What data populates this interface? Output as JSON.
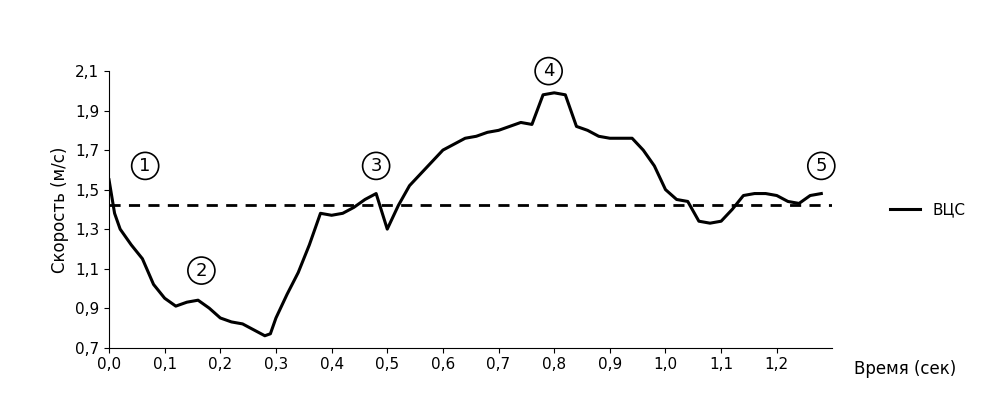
{
  "chart_data": {
    "type": "line",
    "x_label": "Время (сек)",
    "y_label": "Скорость (м/с)",
    "x": [
      0.0,
      0.01,
      0.02,
      0.04,
      0.06,
      0.08,
      0.1,
      0.12,
      0.14,
      0.16,
      0.18,
      0.2,
      0.22,
      0.24,
      0.26,
      0.28,
      0.29,
      0.3,
      0.32,
      0.34,
      0.36,
      0.38,
      0.4,
      0.42,
      0.44,
      0.46,
      0.48,
      0.5,
      0.52,
      0.54,
      0.56,
      0.58,
      0.6,
      0.62,
      0.64,
      0.66,
      0.68,
      0.7,
      0.72,
      0.74,
      0.76,
      0.78,
      0.8,
      0.82,
      0.84,
      0.86,
      0.88,
      0.9,
      0.92,
      0.94,
      0.96,
      0.98,
      1.0,
      1.02,
      1.04,
      1.06,
      1.08,
      1.1,
      1.12,
      1.14,
      1.16,
      1.18,
      1.2,
      1.22,
      1.24,
      1.26,
      1.28
    ],
    "series": [
      {
        "name": "ВЦС",
        "color": "#000000",
        "line_style": "solid",
        "values": [
          1.55,
          1.38,
          1.3,
          1.22,
          1.15,
          1.02,
          0.95,
          0.91,
          0.93,
          0.94,
          0.9,
          0.85,
          0.83,
          0.82,
          0.79,
          0.76,
          0.77,
          0.85,
          0.97,
          1.08,
          1.22,
          1.38,
          1.37,
          1.38,
          1.41,
          1.45,
          1.48,
          1.3,
          1.42,
          1.52,
          1.58,
          1.64,
          1.7,
          1.73,
          1.76,
          1.77,
          1.79,
          1.8,
          1.82,
          1.84,
          1.83,
          1.98,
          1.99,
          1.98,
          1.82,
          1.8,
          1.77,
          1.76,
          1.76,
          1.76,
          1.7,
          1.62,
          1.5,
          1.45,
          1.44,
          1.34,
          1.33,
          1.34,
          1.4,
          1.47,
          1.48,
          1.48,
          1.47,
          1.44,
          1.43,
          1.47,
          1.48
        ]
      }
    ],
    "mean_line": {
      "value": 1.42,
      "color": "#000000",
      "line_style": "dashed"
    },
    "annotations": [
      {
        "text": "1",
        "x": 0.065,
        "y": 1.62
      },
      {
        "text": "2",
        "x": 0.166,
        "y": 1.09
      },
      {
        "text": "3",
        "x": 0.48,
        "y": 1.62
      },
      {
        "text": "4",
        "x": 0.79,
        "y": 2.1
      },
      {
        "text": "5",
        "x": 1.28,
        "y": 1.62
      }
    ],
    "xlim": [
      0.0,
      1.3
    ],
    "xticks": [
      {
        "value": 0.0,
        "label": "0,0"
      },
      {
        "value": 0.1,
        "label": "0,1"
      },
      {
        "value": 0.2,
        "label": "0,2"
      },
      {
        "value": 0.3,
        "label": "0,3"
      },
      {
        "value": 0.4,
        "label": "0,4"
      },
      {
        "value": 0.5,
        "label": "0,5"
      },
      {
        "value": 0.6,
        "label": "0,6"
      },
      {
        "value": 0.7,
        "label": "0,7"
      },
      {
        "value": 0.8,
        "label": "0,8"
      },
      {
        "value": 0.9,
        "label": "0,9"
      },
      {
        "value": 1.0,
        "label": "1,0"
      },
      {
        "value": 1.1,
        "label": "1,1"
      },
      {
        "value": 1.2,
        "label": "1,2"
      }
    ],
    "ylim": [
      0.7,
      2.1
    ],
    "yticks": [
      {
        "value": 0.7,
        "label": "0,7"
      },
      {
        "value": 0.9,
        "label": "0,9"
      },
      {
        "value": 1.1,
        "label": "1,1"
      },
      {
        "value": 1.3,
        "label": "1,3"
      },
      {
        "value": 1.5,
        "label": "1,5"
      },
      {
        "value": 1.7,
        "label": "1,7"
      },
      {
        "value": 1.9,
        "label": "1,9"
      },
      {
        "value": 2.1,
        "label": "2,1"
      }
    ],
    "grid": false,
    "legend": "right"
  }
}
